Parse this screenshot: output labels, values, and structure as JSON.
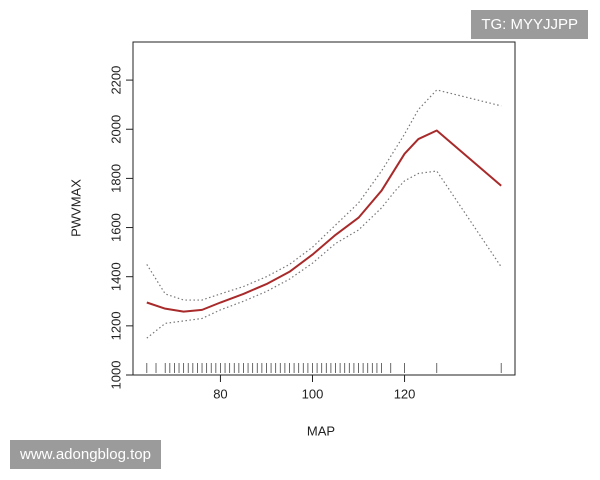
{
  "chart_data": {
    "type": "line",
    "xlabel": "MAP",
    "ylabel": "PWVMAX",
    "x": [
      64,
      68,
      72,
      76,
      80,
      85,
      90,
      95,
      100,
      105,
      110,
      115,
      118,
      120,
      123,
      127,
      141
    ],
    "series": [
      {
        "color": "#a82a2a",
        "style": "solid",
        "values": [
          1295,
          1270,
          1258,
          1265,
          1295,
          1330,
          1370,
          1420,
          1490,
          1570,
          1640,
          1750,
          1840,
          1900,
          1960,
          1995,
          1770
        ]
      },
      {
        "color": "#777777",
        "style": "dotted",
        "values": [
          1450,
          1330,
          1305,
          1305,
          1330,
          1360,
          1400,
          1450,
          1520,
          1610,
          1700,
          1830,
          1920,
          1980,
          2080,
          2160,
          2095
        ]
      },
      {
        "color": "#777777",
        "style": "dotted",
        "values": [
          1150,
          1210,
          1220,
          1230,
          1265,
          1300,
          1340,
          1390,
          1455,
          1535,
          1590,
          1680,
          1750,
          1790,
          1820,
          1830,
          1440
        ]
      }
    ],
    "rug": [
      64,
      66,
      68,
      69,
      70,
      71,
      72,
      73,
      74,
      75,
      76,
      77,
      78,
      79,
      80,
      81,
      82,
      83,
      84,
      85,
      86,
      87,
      88,
      89,
      90,
      91,
      92,
      93,
      94,
      95,
      96,
      97,
      98,
      99,
      100,
      101,
      102,
      103,
      104,
      105,
      106,
      107,
      108,
      109,
      110,
      111,
      112,
      113,
      114,
      115,
      117,
      120,
      127,
      141
    ],
    "xlim": [
      61,
      144
    ],
    "xticks": [
      80,
      100,
      120
    ],
    "ylim": [
      1000,
      2355
    ],
    "yticks": [
      1000,
      1200,
      1400,
      1600,
      1800,
      2000,
      2200
    ]
  },
  "watermarks": [
    "TG: MYYJJPP",
    "www.adongblog.top"
  ]
}
